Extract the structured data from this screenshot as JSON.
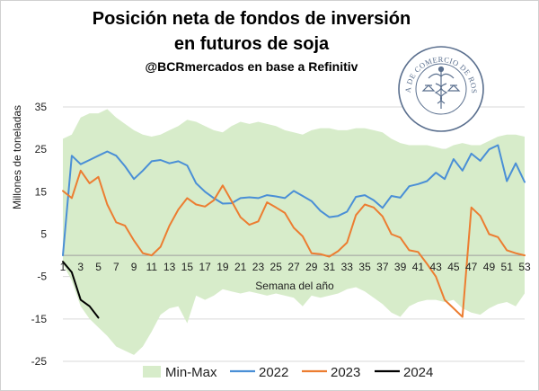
{
  "chart_data": {
    "type": "line",
    "title_line1": "Posición neta de fondos de inversión",
    "title_line2": "en futuros de soja",
    "subtitle": "@BCRmercados en base a Refinitiv",
    "xlabel": "Semana del año",
    "ylabel": "Millones de toneladas",
    "xlim": [
      1,
      53
    ],
    "ylim": [
      -25,
      35
    ],
    "yticks": [
      35,
      25,
      15,
      5,
      -5,
      -15,
      -25
    ],
    "xticks": [
      1,
      3,
      5,
      7,
      9,
      11,
      13,
      15,
      17,
      19,
      21,
      23,
      25,
      27,
      29,
      31,
      33,
      35,
      37,
      39,
      41,
      43,
      45,
      47,
      49,
      51,
      53
    ],
    "grid": "horizontal",
    "legend_position": "bottom",
    "band": {
      "name": "Min-Max",
      "color": "#d7ecca",
      "x": [
        1,
        2,
        3,
        4,
        5,
        6,
        7,
        8,
        9,
        10,
        11,
        12,
        13,
        14,
        15,
        16,
        17,
        18,
        19,
        20,
        21,
        22,
        23,
        24,
        25,
        26,
        27,
        28,
        29,
        30,
        31,
        32,
        33,
        34,
        35,
        36,
        37,
        38,
        39,
        40,
        41,
        42,
        43,
        44,
        45,
        46,
        47,
        48,
        49,
        50,
        51,
        52,
        53
      ],
      "max": [
        27.5,
        28.5,
        32.5,
        33.5,
        33.5,
        34.5,
        32.5,
        31,
        29.5,
        28.5,
        28,
        28.5,
        29.5,
        30.5,
        32,
        31.5,
        30.5,
        29.5,
        29,
        30.5,
        31.5,
        31,
        31.5,
        31,
        30.5,
        29.5,
        29,
        28.5,
        29.5,
        30,
        30,
        29.5,
        29.5,
        30,
        30,
        29.5,
        29,
        27.5,
        26.5,
        26,
        26,
        26,
        25.5,
        25,
        26,
        26.5,
        26,
        26,
        27,
        28,
        28.5,
        28.5,
        28
      ],
      "min": [
        -2,
        -6,
        -12,
        -15,
        -17,
        -19,
        -21.5,
        -22.5,
        -23.5,
        -21.5,
        -18,
        -14,
        -12.5,
        -12,
        -16,
        -9.5,
        -10.5,
        -9.5,
        -8,
        -8.5,
        -9,
        -8.5,
        -9,
        -9.5,
        -9,
        -9.5,
        -10,
        -12,
        -9.5,
        -10,
        -9.5,
        -9,
        -8,
        -7.5,
        -8.5,
        -10,
        -11.5,
        -13.5,
        -14.5,
        -12,
        -11,
        -10.5,
        -10.5,
        -11,
        -10.5,
        -12.5,
        -13.5,
        -14,
        -12.5,
        -11.5,
        -11,
        -12,
        -9
      ]
    },
    "series": [
      {
        "name": "2022",
        "color": "#4a8fd6",
        "x": [
          1,
          2,
          3,
          4,
          5,
          6,
          7,
          8,
          9,
          10,
          11,
          12,
          13,
          14,
          15,
          16,
          17,
          18,
          19,
          20,
          21,
          22,
          23,
          24,
          25,
          26,
          27,
          28,
          29,
          30,
          31,
          32,
          33,
          34,
          35,
          36,
          37,
          38,
          39,
          40,
          41,
          42,
          43,
          44,
          45,
          46,
          47,
          48,
          49,
          50,
          51,
          52,
          53
        ],
        "values": [
          0,
          23.5,
          21.5,
          22.5,
          23.5,
          24.5,
          23.5,
          21,
          18,
          20,
          22.2,
          22.5,
          21.7,
          22.2,
          21.2,
          17,
          15,
          13.5,
          12.2,
          12.3,
          13.5,
          13.7,
          13.5,
          14.2,
          13.9,
          13.5,
          15.2,
          14,
          12.8,
          10.5,
          9,
          9.3,
          10.3,
          13.8,
          14.2,
          13,
          11.2,
          14,
          13.6,
          16.3,
          16.8,
          17.5,
          19.5,
          18,
          22.7,
          20,
          24,
          22.3,
          25,
          26,
          17.5,
          21.7,
          17.3
        ]
      },
      {
        "name": "2023",
        "color": "#ec7d31",
        "x": [
          1,
          2,
          3,
          4,
          5,
          6,
          7,
          8,
          9,
          10,
          11,
          12,
          13,
          14,
          15,
          16,
          17,
          18,
          19,
          20,
          21,
          22,
          23,
          24,
          25,
          26,
          27,
          28,
          29,
          30,
          31,
          32,
          33,
          34,
          35,
          36,
          37,
          38,
          39,
          40,
          41,
          42,
          43,
          44,
          45,
          46,
          47,
          48,
          49,
          50,
          51,
          52,
          53
        ],
        "values": [
          15.2,
          13.5,
          20,
          17,
          18.5,
          12,
          7.8,
          7,
          3.5,
          0.5,
          0,
          2,
          7,
          10.8,
          13.5,
          12,
          11.5,
          13,
          16.5,
          12.8,
          9,
          7.2,
          8,
          12.5,
          11.3,
          10,
          6.5,
          4.5,
          0.5,
          0.3,
          -0.3,
          1,
          3,
          9.5,
          12,
          11.3,
          9.2,
          5,
          4.2,
          1.2,
          0.8,
          -2,
          -5,
          -10.5,
          -12.5,
          -14.5,
          11.3,
          9.3,
          5,
          4.3,
          1.2,
          0.5,
          0
        ]
      },
      {
        "name": "2024",
        "color": "#000000",
        "x": [
          1,
          2,
          3,
          4,
          5
        ],
        "values": [
          -1.5,
          -4,
          -10.5,
          -12,
          -14.7
        ]
      }
    ]
  },
  "logo": {
    "name": "BOLSA DE COMERCIO DE ROSARIO",
    "color": "#5a6f8e"
  }
}
